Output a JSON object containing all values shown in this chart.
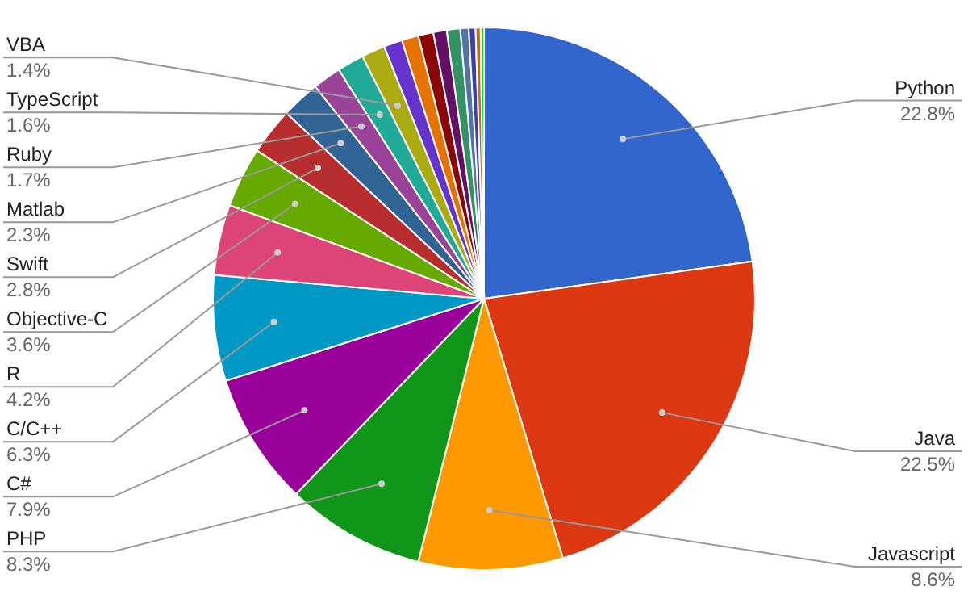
{
  "chart_data": {
    "type": "pie",
    "categories": [
      "Python",
      "Java",
      "Javascript",
      "PHP",
      "C#",
      "C/C++",
      "R",
      "Objective-C",
      "Swift",
      "Matlab",
      "Ruby",
      "TypeScript",
      "VBA",
      null,
      null,
      null,
      null,
      null,
      null,
      null,
      null,
      null
    ],
    "values": [
      22.8,
      22.5,
      8.6,
      8.3,
      7.9,
      6.3,
      4.2,
      3.6,
      2.8,
      2.3,
      1.7,
      1.6,
      1.4,
      1.1,
      1.0,
      0.9,
      0.8,
      0.8,
      0.5,
      0.4,
      0.3,
      0.2
    ],
    "value_labels": [
      "22.8%",
      "22.5%",
      "8.6%",
      "8.3%",
      "7.9%",
      "6.3%",
      "4.2%",
      "3.6%",
      "2.8%",
      "2.3%",
      "1.7%",
      "1.6%",
      "1.4%",
      null,
      null,
      null,
      null,
      null,
      null,
      null,
      null,
      null
    ],
    "colors": [
      "#3366cc",
      "#dc3912",
      "#ff9900",
      "#109618",
      "#990099",
      "#0099c6",
      "#dd4477",
      "#66aa00",
      "#b82e2e",
      "#316395",
      "#994499",
      "#22aa99",
      "#aaaa11",
      "#6633cc",
      "#e67300",
      "#8b0707",
      "#651067",
      "#329262",
      "#5574a6",
      "#3b3eac",
      "#b77322",
      "#16d620"
    ]
  }
}
